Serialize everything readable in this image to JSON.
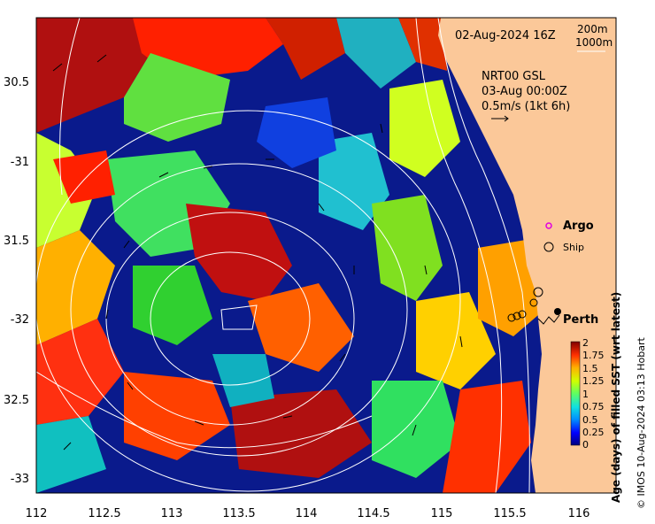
{
  "map": {
    "date_label": "02-Aug-2024 16Z",
    "contour_legend": [
      "200m",
      "1000m"
    ],
    "current_source": "NRT00 GSL",
    "current_time": "03-Aug 00:00Z",
    "current_scale": "0.5m/s (1kt 6h)",
    "lon_ticks": [
      "112",
      "112.5",
      "113",
      "113.5",
      "114",
      "114.5",
      "115",
      "115.5",
      "116"
    ],
    "lat_ticks": [
      "30.5",
      "-31",
      "31.5",
      "-32",
      "32.5",
      "-33"
    ],
    "legend": {
      "argo": "Argo",
      "ship": "Ship"
    },
    "place_label": "Perth",
    "colorbar": {
      "title": "Age (days) of filled SST (wrt latest)",
      "ticks": [
        "2",
        "1.75",
        "1.5",
        "1.25",
        "1",
        "0.75",
        "0.5",
        "0.25",
        "0"
      ]
    },
    "credit": "© IMOS 10-Aug-2024 03:13 Hobart"
  },
  "colors": {
    "land": "#fbc899",
    "deep_blue": "#0a1a8c",
    "argo_marker": "#e000e0"
  }
}
